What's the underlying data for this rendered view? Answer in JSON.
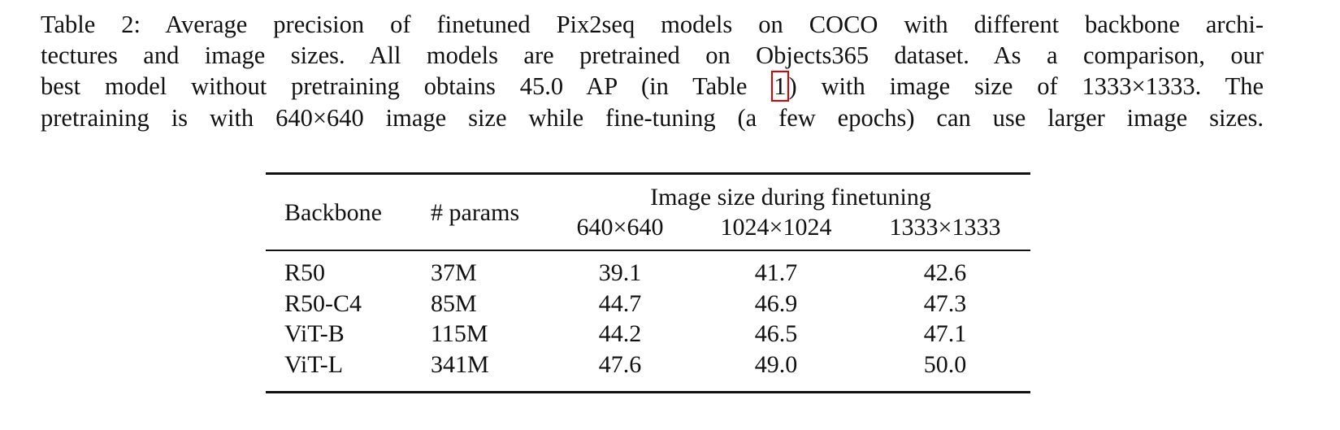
{
  "caption": {
    "lines": [
      [
        "Table 2: Average precision of finetuned Pix2seq models on COCO with different backbone archi-"
      ],
      [
        "tectures and image sizes. All models are pretrained on Objects365 dataset. As a comparison, our"
      ],
      [
        "best model without pretraining obtains 45.0 AP (in Table ",
        "1",
        ") with image size of 1333×1333. The"
      ],
      [
        "pretraining is with 640×640 image size while fine-tuning (a few epochs) can use larger image sizes."
      ]
    ]
  },
  "table": {
    "header": {
      "backbone": "Backbone",
      "params": "# params",
      "group": "Image size during finetuning",
      "sizes": [
        "640×640",
        "1024×1024",
        "1333×1333"
      ]
    },
    "rows": [
      [
        "R50",
        "37M",
        "39.1",
        "41.7",
        "42.6"
      ],
      [
        "R50-C4",
        "85M",
        "44.7",
        "46.9",
        "47.3"
      ],
      [
        "ViT-B",
        "115M",
        "44.2",
        "46.5",
        "47.1"
      ],
      [
        "ViT-L",
        "341M",
        "47.6",
        "49.0",
        "50.0"
      ]
    ]
  }
}
